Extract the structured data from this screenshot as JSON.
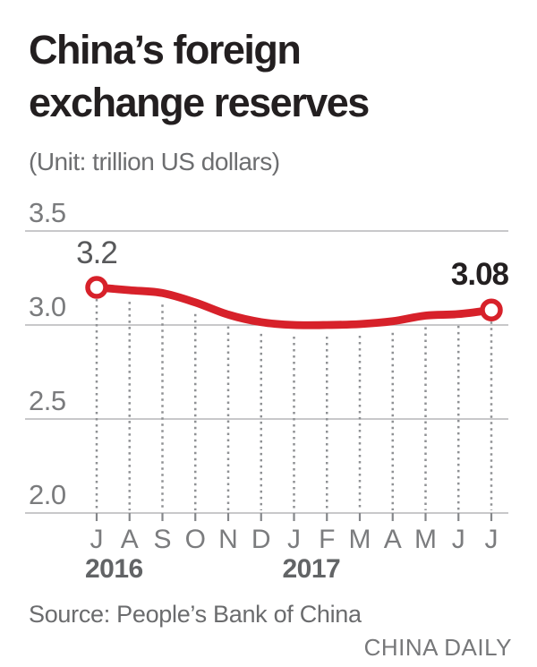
{
  "header": {
    "title": "China’s foreign exchange reserves",
    "subtitle": "(Unit: trillion US dollars)"
  },
  "chart_data": {
    "type": "line",
    "title": "China’s foreign exchange reserves",
    "ylabel": "trillion US dollars",
    "categories": [
      "J",
      "A",
      "S",
      "O",
      "N",
      "D",
      "J",
      "F",
      "M",
      "A",
      "M",
      "J",
      "J"
    ],
    "category_years": [
      {
        "label": "2016",
        "start_index": 0
      },
      {
        "label": "2017",
        "start_index": 6
      }
    ],
    "values": [
      3.2,
      3.185,
      3.17,
      3.12,
      3.055,
      3.015,
      3.0,
      3.0,
      3.005,
      3.02,
      3.05,
      3.058,
      3.08
    ],
    "labeled_points": [
      {
        "index": 0,
        "label": "3.2"
      },
      {
        "index": 12,
        "label": "3.08"
      }
    ],
    "yticks": [
      3.5,
      3.0,
      2.5,
      2.0
    ],
    "ytick_labels": [
      "3.5",
      "3.0",
      "2.5",
      "2.0"
    ],
    "ylim": [
      2.0,
      3.5
    ],
    "grid": "horizontal-solid, vertical-dotted",
    "legend": "none",
    "line_color": "#d7212a",
    "grid_color": "#b5b6b8",
    "dot_color": "#8f9194"
  },
  "footer": {
    "source": "Source: People’s Bank of China",
    "credit": "CHINA DAILY"
  }
}
